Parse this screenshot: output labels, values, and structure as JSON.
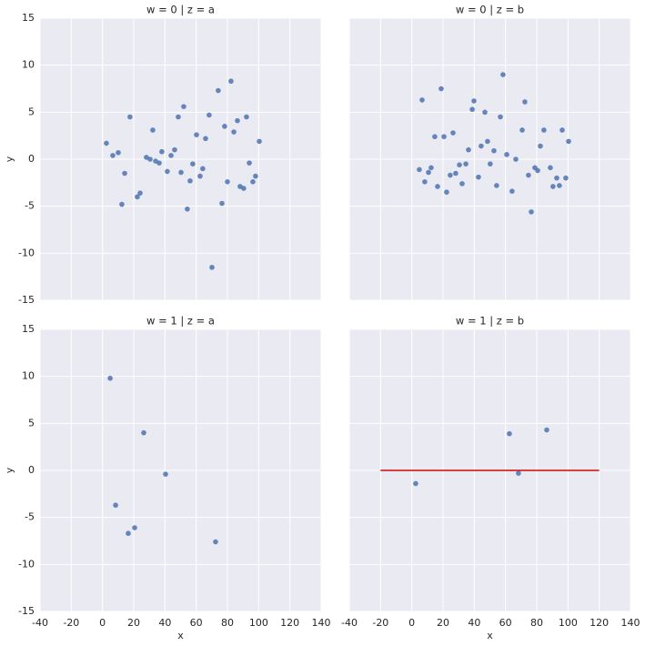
{
  "chart_data": [
    {
      "type": "scatter",
      "title": "w = 0 | z = a",
      "ylabel": "y",
      "xlim": [
        -40,
        140
      ],
      "ylim": [
        -15,
        15
      ],
      "xticks": [
        -40,
        -20,
        0,
        20,
        40,
        60,
        80,
        100,
        120,
        140
      ],
      "yticks": [
        -15,
        -10,
        -5,
        0,
        5,
        10,
        15
      ],
      "grid": true,
      "color": "#4c72b0",
      "x": [
        2.5,
        6.6,
        10.1,
        12.4,
        14.2,
        17.6,
        22.3,
        24.1,
        28.1,
        30.5,
        32.2,
        34.0,
        36.3,
        38.0,
        41.5,
        43.9,
        46.2,
        48.5,
        50.3,
        52.0,
        54.3,
        56.1,
        57.8,
        60.2,
        62.5,
        64.2,
        66.0,
        68.3,
        70.1,
        74.1,
        76.5,
        78.2,
        80.0,
        82.3,
        84.1,
        86.4,
        88.1,
        90.4,
        92.2,
        94.0,
        96.3,
        98.0,
        100.4
      ],
      "y": [
        1.7,
        0.4,
        0.7,
        -4.8,
        -1.5,
        4.5,
        -4.0,
        -3.6,
        0.2,
        0.0,
        3.1,
        -0.2,
        -0.4,
        0.8,
        -1.3,
        0.4,
        1.0,
        4.5,
        -1.4,
        5.6,
        -5.3,
        -2.3,
        -0.5,
        2.6,
        -1.8,
        -1.0,
        2.2,
        4.7,
        -11.5,
        7.3,
        -4.7,
        3.5,
        -2.4,
        8.3,
        2.9,
        4.1,
        -2.9,
        -3.1,
        4.5,
        -0.4,
        -2.4,
        -1.8,
        1.9
      ]
    },
    {
      "type": "scatter",
      "title": "w = 0 | z = b",
      "xlim": [
        -40,
        140
      ],
      "ylim": [
        -15,
        15
      ],
      "xticks": [
        -40,
        -20,
        0,
        20,
        40,
        60,
        80,
        100,
        120,
        140
      ],
      "yticks": [
        -15,
        -10,
        -5,
        0,
        5,
        10,
        15
      ],
      "grid": true,
      "color": "#4c72b0",
      "x": [
        4.8,
        6.6,
        8.3,
        10.7,
        12.4,
        14.7,
        16.5,
        18.8,
        20.6,
        22.3,
        24.6,
        26.4,
        28.1,
        30.5,
        32.2,
        34.6,
        36.3,
        38.7,
        39.8,
        42.7,
        44.4,
        46.8,
        48.5,
        50.2,
        52.6,
        54.3,
        56.7,
        58.4,
        60.8,
        64.2,
        66.6,
        70.7,
        72.4,
        74.7,
        76.5,
        78.8,
        80.6,
        82.3,
        84.6,
        88.7,
        90.4,
        92.8,
        94.5,
        96.3,
        98.6,
        100.4
      ],
      "y": [
        -1.1,
        6.3,
        -2.4,
        -1.4,
        -0.9,
        2.4,
        -2.9,
        7.5,
        2.4,
        -3.5,
        -1.7,
        2.8,
        -1.5,
        -0.6,
        -2.6,
        -0.5,
        1.0,
        5.3,
        6.2,
        -1.9,
        1.4,
        5.0,
        1.9,
        -0.5,
        0.9,
        -2.8,
        4.5,
        9.0,
        0.5,
        -3.4,
        0.0,
        3.1,
        6.1,
        -1.7,
        -5.6,
        -0.9,
        -1.2,
        1.4,
        3.1,
        -0.9,
        -2.9,
        -2.0,
        -2.8,
        3.1,
        -2.0,
        1.9
      ]
    },
    {
      "type": "scatter",
      "title": "w = 1 | z = a",
      "xlabel": "x",
      "ylabel": "y",
      "xlim": [
        -40,
        140
      ],
      "ylim": [
        -15,
        15
      ],
      "xticks": [
        -40,
        -20,
        0,
        20,
        40,
        60,
        80,
        100,
        120,
        140
      ],
      "yticks": [
        -15,
        -10,
        -5,
        0,
        5,
        10,
        15
      ],
      "grid": true,
      "color": "#4c72b0",
      "x": [
        4.9,
        8.4,
        16.5,
        20.6,
        26.4,
        40.4,
        72.4
      ],
      "y": [
        9.8,
        -3.7,
        -6.7,
        -6.1,
        4.0,
        -0.4,
        -7.6
      ]
    },
    {
      "type": "scatter",
      "title": "w = 1 | z = b",
      "xlabel": "x",
      "xlim": [
        -40,
        140
      ],
      "ylim": [
        -15,
        15
      ],
      "xticks": [
        -40,
        -20,
        0,
        20,
        40,
        60,
        80,
        100,
        120,
        140
      ],
      "yticks": [
        -15,
        -10,
        -5,
        0,
        5,
        10,
        15
      ],
      "grid": true,
      "color": "#4c72b0",
      "x": [
        2.5,
        62.5,
        68.3,
        86.4
      ],
      "y": [
        -1.4,
        3.9,
        -0.3,
        4.3
      ],
      "lines": [
        {
          "x": [
            -20,
            120
          ],
          "y": [
            0,
            0
          ],
          "color": "#d62728"
        }
      ]
    }
  ]
}
